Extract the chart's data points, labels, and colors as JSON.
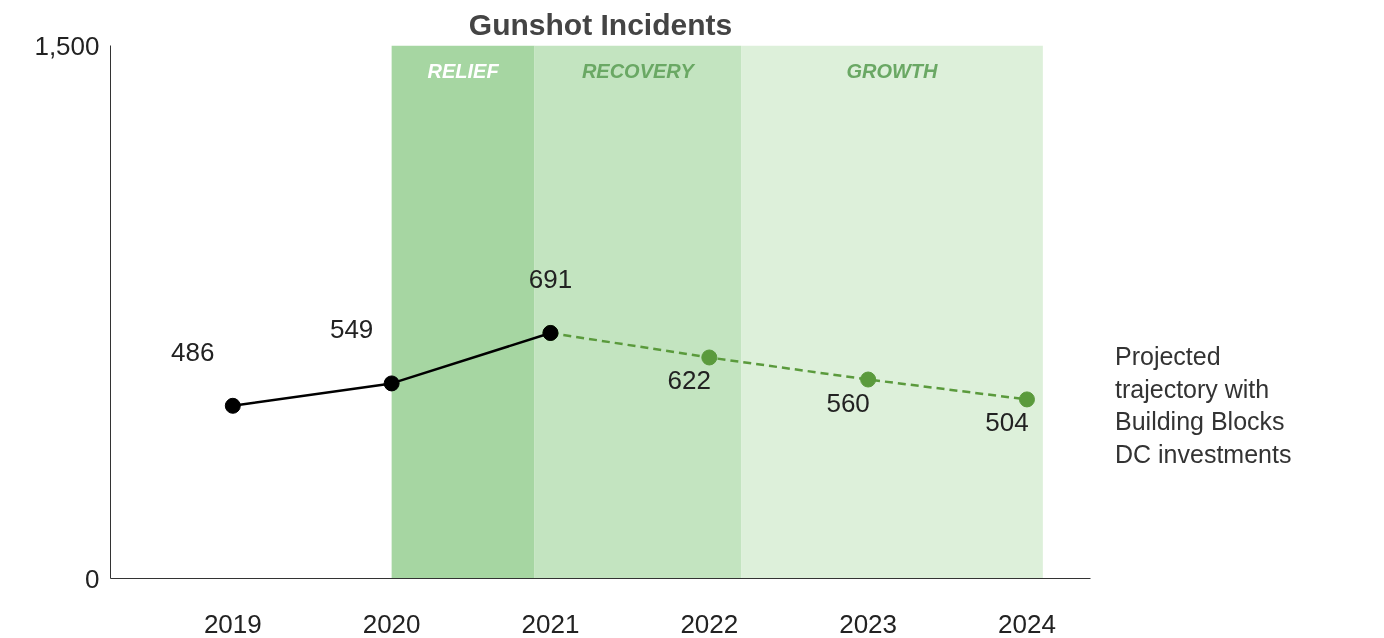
{
  "chart_data": {
    "type": "line",
    "title": "Gunshot Incidents",
    "series": [
      {
        "color": "#000000",
        "x": [
          2019,
          2020,
          2021
        ],
        "values": [
          486,
          549,
          691
        ],
        "value_labels": [
          "486",
          "549",
          "691"
        ],
        "line_style": "solid"
      },
      {
        "color": "#5a9a3c",
        "x": [
          2021,
          2022,
          2023,
          2024
        ],
        "values": [
          691,
          622,
          560,
          504
        ],
        "value_labels": [
          null,
          "622",
          "560",
          "504"
        ],
        "line_style": "dashed"
      }
    ],
    "xlim": [
      2018.23,
      2024.4
    ],
    "ylim": [
      0,
      1500
    ],
    "xticks": [
      2019,
      2020,
      2021,
      2022,
      2023,
      2024
    ],
    "yticks": [
      0,
      {
        "value": 1500,
        "label": "1,500"
      }
    ],
    "bands": [
      {
        "axis": "x",
        "from": 2020,
        "to": 2020.9,
        "label": "RELIEF",
        "color": "#a6d6a2"
      },
      {
        "axis": "x",
        "from": 2020.9,
        "to": 2022.2,
        "label": "RECOVERY",
        "color": "#c3e4c0"
      },
      {
        "axis": "x",
        "from": 2022.2,
        "to": 2024.1,
        "label": "GROWTH",
        "color": "#ddf0da"
      }
    ],
    "annotations": [
      "Projected\ntrajectory with\nBuilding Blocks\nDC investments"
    ],
    "marker": "circle",
    "grid": false
  }
}
